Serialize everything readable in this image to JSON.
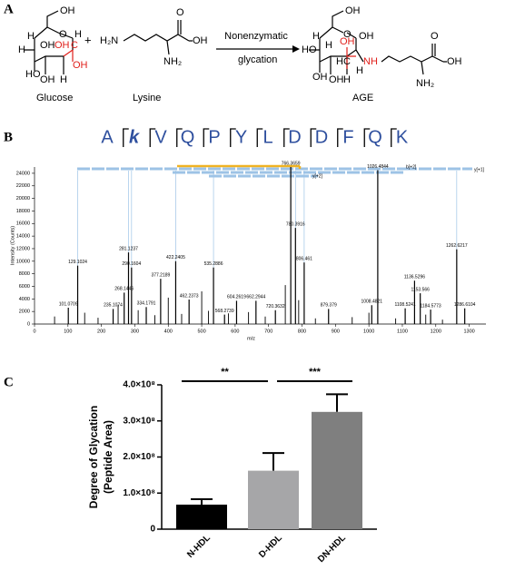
{
  "panel_labels": [
    "A",
    "B",
    "C"
  ],
  "diagram": {
    "glucose": {
      "name": "Glucose",
      "atoms": [
        "OH",
        "H",
        "O",
        "H",
        "OH",
        "HO",
        "OH",
        "H",
        "H",
        "OH",
        "C",
        "OH"
      ]
    },
    "plus": "+",
    "lysine": {
      "name": "Lysine",
      "atoms": [
        "H₂N",
        "O",
        "OH",
        "NH₂"
      ]
    },
    "arrow_top": "Nonenzymatic",
    "arrow_bottom": "glycation",
    "product": {
      "name": "AGE",
      "atoms": [
        "OH",
        "OH",
        "H",
        "O",
        "H",
        "HO",
        "OH",
        "OH",
        "H",
        "H",
        "C",
        "NH",
        "OH",
        "H",
        "O",
        "OH",
        "NH₂"
      ]
    }
  },
  "chart_data": [
    {
      "type": "spectrum",
      "sequence": [
        "A",
        "k",
        "V",
        "Q",
        "P",
        "Y",
        "L",
        "D",
        "D",
        "F",
        "Q",
        "K"
      ],
      "x_label": "m/z",
      "y_label": "Intensity (Counts)",
      "ion_labels": [
        "b[+2]",
        "y[+1]",
        "y[+2]"
      ],
      "x": [
        101.0709,
        129.1024,
        235.1074,
        268.1446,
        281.1237,
        290.1604,
        334.1791,
        377.2189,
        422.2405,
        462.2373,
        535.2886,
        568.2739,
        604.2619,
        662.2944,
        720.3632,
        766.3659,
        780.3916,
        806.461,
        879.379,
        1008.4821,
        1026.4844,
        1108.5241,
        1136.5296,
        1153.566,
        1184.5773,
        1262.6217,
        1286.6104
      ],
      "values": [
        2600,
        9300,
        2400,
        5000,
        11400,
        9000,
        2700,
        7200,
        10000,
        3900,
        9000,
        1500,
        3700,
        3700,
        2200,
        25000,
        15300,
        9800,
        2400,
        3000,
        24500,
        2500,
        6900,
        4900,
        2300,
        11900,
        2500
      ],
      "minor_x": [
        60,
        150,
        190,
        250,
        310,
        360,
        400,
        440,
        500,
        520,
        580,
        640,
        690,
        750,
        790,
        840,
        950,
        1000,
        1080,
        1170,
        1220
      ],
      "minor_values": [
        1200,
        1800,
        1000,
        3000,
        2200,
        1400,
        4200,
        1600,
        5200,
        2100,
        1700,
        1900,
        1200,
        6200,
        3800,
        900,
        1100,
        1800,
        900,
        1500,
        700
      ],
      "color": "#000000",
      "xlim": [
        0,
        1350
      ],
      "ylim": [
        0,
        25000
      ],
      "xticks": [
        0,
        100,
        200,
        300,
        400,
        500,
        600,
        700,
        800,
        900,
        1000,
        1100,
        1200,
        1300
      ],
      "yticks": [
        0,
        2000,
        4000,
        6000,
        8000,
        10000,
        12000,
        14000,
        16000,
        18000,
        20000,
        22000,
        24000
      ]
    },
    {
      "type": "bar",
      "y_label": [
        "Degree of Glycation",
        "(Peptide Area)"
      ],
      "categories": [
        "N-HDL",
        "D-HDL",
        "DN-HDL"
      ],
      "values": [
        68000000,
        162000000,
        325000000
      ],
      "errors": [
        15000000,
        49000000,
        49000000
      ],
      "colors": [
        "#000000",
        "#a6a6a8",
        "#7f7f7f"
      ],
      "ylim": [
        0,
        400000000
      ],
      "yticks": [
        0,
        {
          "value": 100000000,
          "label": "1.0×10⁸"
        },
        {
          "value": 200000000,
          "label": "2.0×10⁸"
        },
        {
          "value": 300000000,
          "label": "3.0×10⁸"
        },
        {
          "value": 400000000,
          "label": "4.0×10⁸"
        }
      ],
      "annotations": [
        "**",
        "***"
      ]
    }
  ]
}
